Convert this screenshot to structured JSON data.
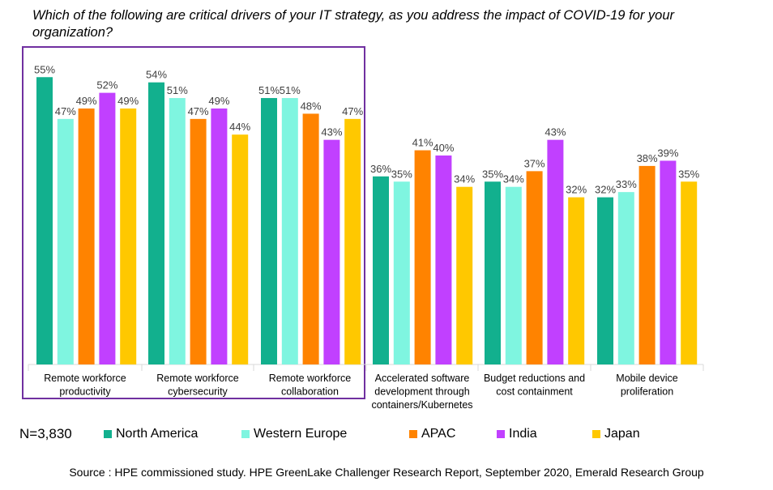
{
  "title": "Which of the following are critical drivers of your IT strategy, as you address the impact of COVID-19 for your organization?",
  "sample_size": "N=3,830",
  "source": "Source : HPE commissioned study.  HPE GreenLake Challenger Research Report, September 2020, Emerald Research Group",
  "colors": {
    "North America": "#12b08e",
    "Western Europe": "#7ff5e0",
    "APAC": "#ff8300",
    "India": "#c140ff",
    "Japan": "#ffc800",
    "highlight_box": "#7030a0",
    "axis": "#d9d9d9"
  },
  "chart_data": {
    "type": "bar",
    "categories": [
      "Remote workforce productivity",
      "Remote workforce cybersecurity",
      "Remote workforce collaboration",
      "Accelerated software development through containers/Kubernetes",
      "Budget reductions and cost containment",
      "Mobile device proliferation"
    ],
    "category_lines": [
      [
        "Remote workforce",
        "productivity"
      ],
      [
        "Remote workforce",
        "cybersecurity"
      ],
      [
        "Remote workforce",
        "collaboration"
      ],
      [
        "Accelerated software",
        "development through",
        "containers/Kubernetes"
      ],
      [
        "Budget reductions and",
        "cost containment"
      ],
      [
        "Mobile device",
        "proliferation"
      ]
    ],
    "series": [
      {
        "name": "North America",
        "values": [
          55,
          54,
          51,
          36,
          35,
          32
        ]
      },
      {
        "name": "Western Europe",
        "values": [
          47,
          51,
          51,
          35,
          34,
          33
        ]
      },
      {
        "name": "APAC",
        "values": [
          49,
          47,
          48,
          41,
          37,
          38
        ]
      },
      {
        "name": "India",
        "values": [
          52,
          49,
          43,
          40,
          43,
          39
        ]
      },
      {
        "name": "Japan",
        "values": [
          49,
          44,
          47,
          34,
          32,
          35
        ]
      }
    ],
    "value_suffix": "%",
    "ylim": [
      0,
      60
    ],
    "highlighted_categories": [
      0,
      1,
      2
    ],
    "legend_position": "bottom",
    "grid": false
  }
}
